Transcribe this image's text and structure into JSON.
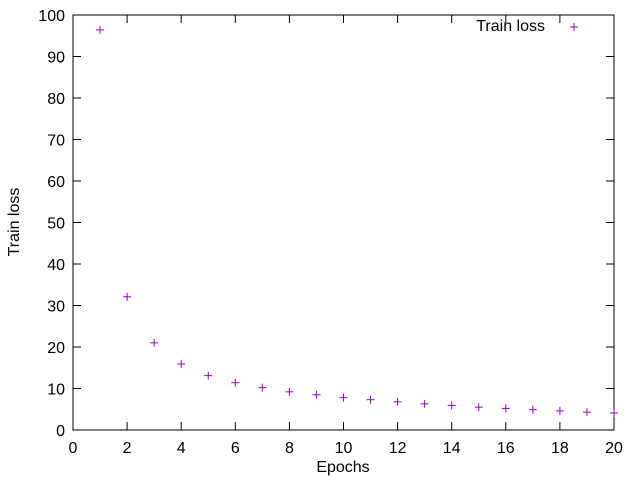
{
  "chart_data": {
    "type": "scatter",
    "title": "",
    "xlabel": "Epochs",
    "ylabel": "Train loss",
    "xlim": [
      0,
      20
    ],
    "ylim": [
      0,
      100
    ],
    "x_ticks": [
      0,
      2,
      4,
      6,
      8,
      10,
      12,
      14,
      16,
      18,
      20
    ],
    "y_ticks": [
      0,
      10,
      20,
      30,
      40,
      50,
      60,
      70,
      80,
      90,
      100
    ],
    "grid": false,
    "legend_position": "top-right",
    "marker": "+",
    "series": [
      {
        "name": "Train loss",
        "color": "#9400d3",
        "x": [
          1,
          2,
          3,
          4,
          5,
          6,
          7,
          8,
          9,
          10,
          11,
          12,
          13,
          14,
          15,
          16,
          17,
          18,
          19,
          20
        ],
        "y": [
          96.4,
          32.1,
          21.0,
          15.9,
          13.1,
          11.4,
          10.2,
          9.2,
          8.5,
          7.8,
          7.3,
          6.8,
          6.3,
          5.9,
          5.5,
          5.2,
          4.9,
          4.6,
          4.3,
          4.1
        ]
      }
    ]
  }
}
